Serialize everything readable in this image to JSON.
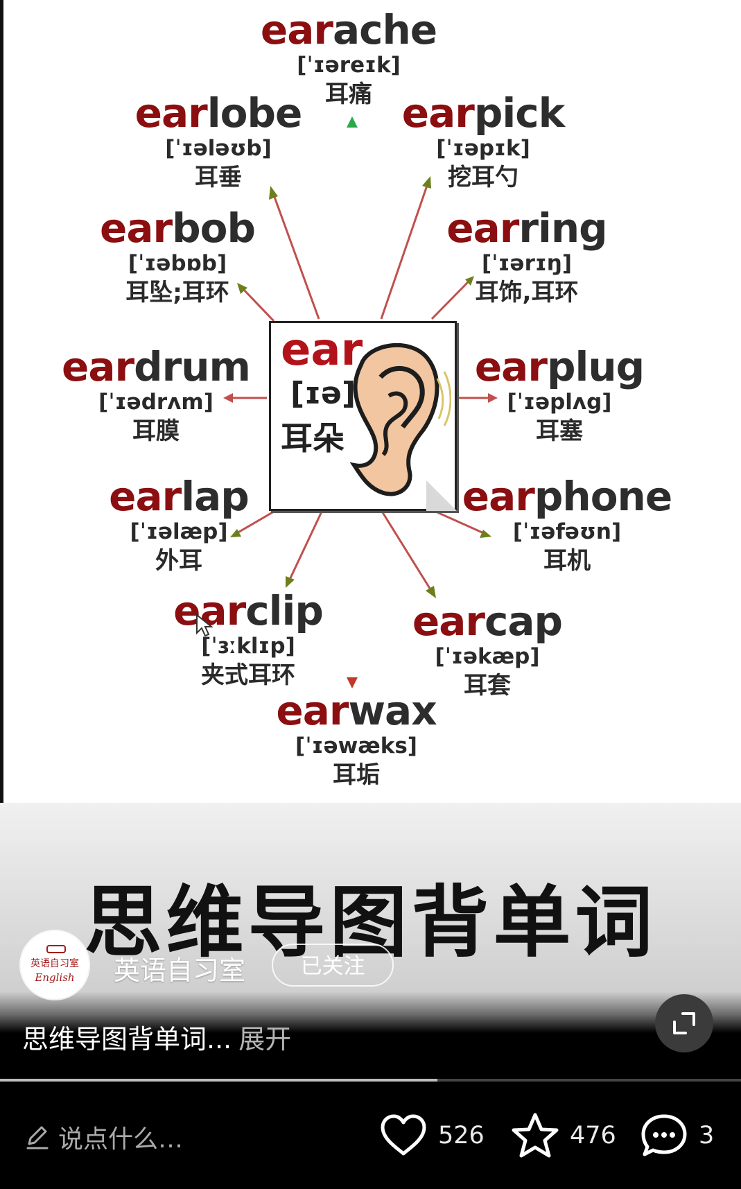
{
  "center": {
    "word": "ear",
    "ipa": "[ɪə]",
    "zh": "耳朵"
  },
  "words": [
    {
      "prefix": "ear",
      "suffix": "ache",
      "ipa": "[ˈɪəreɪk]",
      "zh": "耳痛"
    },
    {
      "prefix": "ear",
      "suffix": "lobe",
      "ipa": "[ˈɪələʊb]",
      "zh": "耳垂"
    },
    {
      "prefix": "ear",
      "suffix": "pick",
      "ipa": "[ˈɪəpɪk]",
      "zh": "挖耳勺"
    },
    {
      "prefix": "ear",
      "suffix": "bob",
      "ipa": "[ˈɪəbɒb]",
      "zh": "耳坠;耳环"
    },
    {
      "prefix": "ear",
      "suffix": "ring",
      "ipa": "[ˈɪərɪŋ]",
      "zh": "耳饰,耳环"
    },
    {
      "prefix": "ear",
      "suffix": "drum",
      "ipa": "[ˈɪədrʌm]",
      "zh": "耳膜"
    },
    {
      "prefix": "ear",
      "suffix": "plug",
      "ipa": "[ˈɪəplʌg]",
      "zh": "耳塞"
    },
    {
      "prefix": "ear",
      "suffix": "lap",
      "ipa": "[ˈɪəlæp]",
      "zh": "外耳"
    },
    {
      "prefix": "ear",
      "suffix": "phone",
      "ipa": "[ˈɪəfəʊn]",
      "zh": "耳机"
    },
    {
      "prefix": "ear",
      "suffix": "clip",
      "ipa": "[ˈɜːklɪp]",
      "zh": "夹式耳环"
    },
    {
      "prefix": "ear",
      "suffix": "cap",
      "ipa": "[ˈɪəkæp]",
      "zh": "耳套"
    },
    {
      "prefix": "ear",
      "suffix": "wax",
      "ipa": "[ˈɪəwæks]",
      "zh": "耳垢"
    }
  ],
  "video": {
    "overlay_title": "思维导图背单词",
    "author": "英语自习室",
    "follow_label": "已关注",
    "avatar_text_cn": "英语自习室",
    "avatar_text_en": "English",
    "description": "思维导图背单词...",
    "expand_label": "展开",
    "progress": 0.59
  },
  "actions": {
    "comment_placeholder": "说点什么…",
    "likes": "526",
    "favorites": "476",
    "comments": "3"
  },
  "colors": {
    "prefix": "#8b0e10",
    "arrow_red": "#c0392b",
    "arrow_olive": "#7a8a1e",
    "arrow_green": "#27a844"
  },
  "icons": [
    "edit-pencil-icon",
    "heart-icon",
    "star-icon",
    "comment-bubble-icon",
    "fullscreen-icon"
  ]
}
